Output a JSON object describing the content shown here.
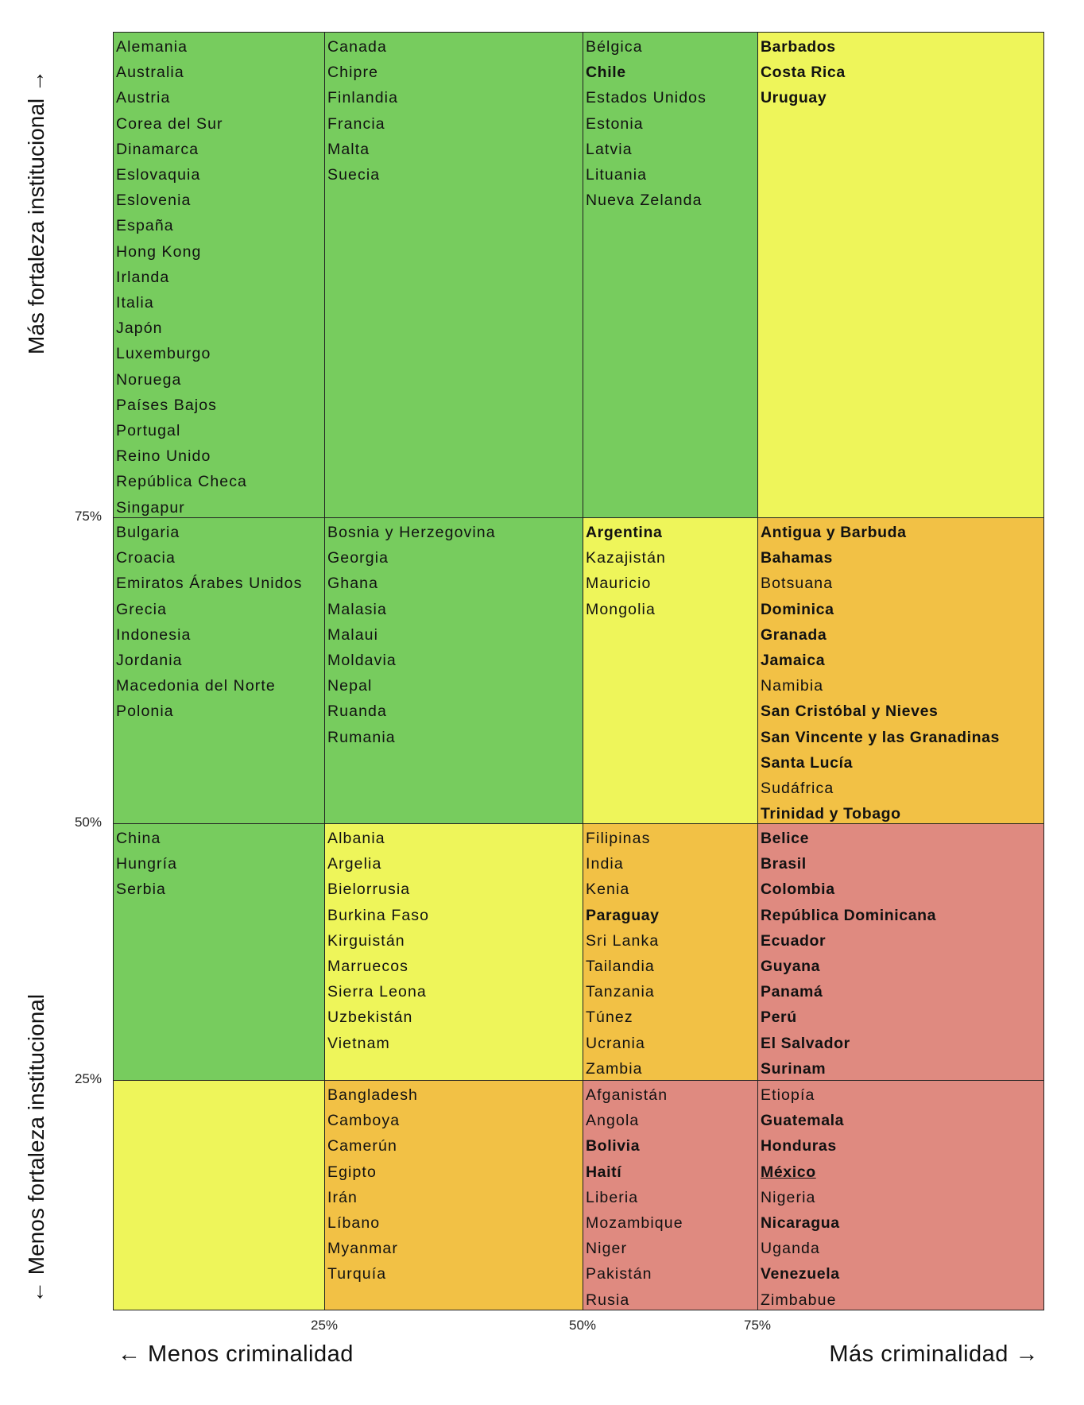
{
  "chart_data": {
    "type": "table",
    "title": "",
    "xlabel_left": "← Menos criminalidad",
    "xlabel_right": "Más criminalidad →",
    "ylabel_top": "Más fortaleza institucional →",
    "ylabel_bottom": "← Menos fortaleza institucional",
    "x_ticks": [
      "25%",
      "50%",
      "75%"
    ],
    "y_ticks": [
      "75%",
      "50%",
      "25%"
    ],
    "colors": {
      "green": "#77CC5E",
      "yellow": "#EEF55A",
      "orange": "#F2C145",
      "red": "#DF8A80"
    },
    "rows": [
      {
        "cells": [
          {
            "color": "green",
            "items": [
              {
                "name": "Alemania"
              },
              {
                "name": "Australia"
              },
              {
                "name": "Austria"
              },
              {
                "name": "Corea del Sur"
              },
              {
                "name": "Dinamarca"
              },
              {
                "name": "Eslovaquia"
              },
              {
                "name": "Eslovenia"
              },
              {
                "name": "España"
              },
              {
                "name": "Hong Kong"
              },
              {
                "name": "Irlanda"
              },
              {
                "name": "Italia"
              },
              {
                "name": "Japón"
              },
              {
                "name": "Luxemburgo"
              },
              {
                "name": "Noruega"
              },
              {
                "name": "Países Bajos"
              },
              {
                "name": "Portugal"
              },
              {
                "name": "Reino Unido"
              },
              {
                "name": "República Checa"
              },
              {
                "name": "Singapur"
              }
            ]
          },
          {
            "color": "green",
            "items": [
              {
                "name": "Canada"
              },
              {
                "name": "Chipre"
              },
              {
                "name": "Finlandia"
              },
              {
                "name": "Francia"
              },
              {
                "name": "Malta"
              },
              {
                "name": "Suecia"
              }
            ]
          },
          {
            "color": "green",
            "items": [
              {
                "name": "Bélgica"
              },
              {
                "name": "Chile",
                "bold": true
              },
              {
                "name": "Estados Unidos"
              },
              {
                "name": "Estonia"
              },
              {
                "name": "Latvia"
              },
              {
                "name": "Lituania"
              },
              {
                "name": "Nueva Zelanda"
              }
            ]
          },
          {
            "color": "yellow",
            "items": [
              {
                "name": "Barbados",
                "bold": true
              },
              {
                "name": "Costa Rica",
                "bold": true
              },
              {
                "name": "Uruguay",
                "bold": true
              }
            ]
          }
        ]
      },
      {
        "cells": [
          {
            "color": "green",
            "items": [
              {
                "name": "Bulgaria"
              },
              {
                "name": "Croacia"
              },
              {
                "name": "Emiratos Árabes Unidos"
              },
              {
                "name": "Grecia"
              },
              {
                "name": "Indonesia"
              },
              {
                "name": "Jordania"
              },
              {
                "name": "Macedonia del Norte"
              },
              {
                "name": "Polonia"
              }
            ]
          },
          {
            "color": "green",
            "items": [
              {
                "name": "Bosnia y Herzegovina"
              },
              {
                "name": "Georgia"
              },
              {
                "name": "Ghana"
              },
              {
                "name": "Malasia"
              },
              {
                "name": "Malaui"
              },
              {
                "name": "Moldavia"
              },
              {
                "name": "Nepal"
              },
              {
                "name": "Ruanda"
              },
              {
                "name": "Rumania"
              }
            ]
          },
          {
            "color": "yellow",
            "items": [
              {
                "name": "Argentina",
                "bold": true
              },
              {
                "name": "Kazajistán"
              },
              {
                "name": "Mauricio"
              },
              {
                "name": "Mongolia"
              }
            ]
          },
          {
            "color": "orange",
            "items": [
              {
                "name": "Antigua y Barbuda",
                "bold": true
              },
              {
                "name": "Bahamas",
                "bold": true
              },
              {
                "name": "Botsuana"
              },
              {
                "name": "Dominica",
                "bold": true
              },
              {
                "name": "Granada",
                "bold": true
              },
              {
                "name": "Jamaica",
                "bold": true
              },
              {
                "name": "Namibia"
              },
              {
                "name": "San Cristóbal y Nieves",
                "bold": true
              },
              {
                "name": "San Vincente y las Granadinas",
                "bold": true
              },
              {
                "name": "Santa Lucía",
                "bold": true
              },
              {
                "name": "Sudáfrica"
              },
              {
                "name": "Trinidad y Tobago",
                "bold": true
              }
            ]
          }
        ]
      },
      {
        "cells": [
          {
            "color": "green",
            "items": [
              {
                "name": "China"
              },
              {
                "name": "Hungría"
              },
              {
                "name": "Serbia"
              }
            ]
          },
          {
            "color": "yellow",
            "items": [
              {
                "name": "Albania"
              },
              {
                "name": "Argelia"
              },
              {
                "name": "Bielorrusia"
              },
              {
                "name": "Burkina Faso"
              },
              {
                "name": "Kirguistán"
              },
              {
                "name": "Marruecos"
              },
              {
                "name": "Sierra Leona"
              },
              {
                "name": "Uzbekistán"
              },
              {
                "name": "Vietnam"
              }
            ]
          },
          {
            "color": "orange",
            "items": [
              {
                "name": "Filipinas"
              },
              {
                "name": "India"
              },
              {
                "name": "Kenia"
              },
              {
                "name": "Paraguay",
                "bold": true
              },
              {
                "name": "Sri Lanka"
              },
              {
                "name": "Tailandia"
              },
              {
                "name": "Tanzania"
              },
              {
                "name": "Túnez"
              },
              {
                "name": "Ucrania"
              },
              {
                "name": "Zambia"
              }
            ]
          },
          {
            "color": "red",
            "items": [
              {
                "name": "Belice",
                "bold": true
              },
              {
                "name": "Brasil",
                "bold": true
              },
              {
                "name": "Colombia",
                "bold": true
              },
              {
                "name": "República Dominicana",
                "bold": true
              },
              {
                "name": "Ecuador",
                "bold": true
              },
              {
                "name": "Guyana",
                "bold": true
              },
              {
                "name": "Panamá",
                "bold": true
              },
              {
                "name": "Perú",
                "bold": true
              },
              {
                "name": "El Salvador",
                "bold": true
              },
              {
                "name": "Surinam",
                "bold": true
              }
            ]
          }
        ]
      },
      {
        "cells": [
          {
            "color": "yellow",
            "items": []
          },
          {
            "color": "orange",
            "items": [
              {
                "name": "Bangladesh"
              },
              {
                "name": "Camboya"
              },
              {
                "name": "Camerún"
              },
              {
                "name": "Egipto"
              },
              {
                "name": "Irán"
              },
              {
                "name": "Líbano"
              },
              {
                "name": "Myanmar"
              },
              {
                "name": "Turquía"
              }
            ]
          },
          {
            "color": "red",
            "items": [
              {
                "name": "Afganistán"
              },
              {
                "name": "Angola"
              },
              {
                "name": "Bolivia",
                "bold": true
              },
              {
                "name": "Haití",
                "bold": true
              },
              {
                "name": "Liberia"
              },
              {
                "name": "Mozambique"
              },
              {
                "name": "Niger"
              },
              {
                "name": "Pakistán"
              },
              {
                "name": "Rusia"
              }
            ]
          },
          {
            "color": "red",
            "items": [
              {
                "name": "Etiopía"
              },
              {
                "name": "Guatemala",
                "bold": true
              },
              {
                "name": "Honduras",
                "bold": true
              },
              {
                "name": "México",
                "bold": true,
                "underline": true
              },
              {
                "name": "Nigeria"
              },
              {
                "name": "Nicaragua",
                "bold": true
              },
              {
                "name": "Uganda"
              },
              {
                "name": "Venezuela",
                "bold": true
              },
              {
                "name": "Zimbabue"
              }
            ]
          }
        ]
      }
    ]
  }
}
